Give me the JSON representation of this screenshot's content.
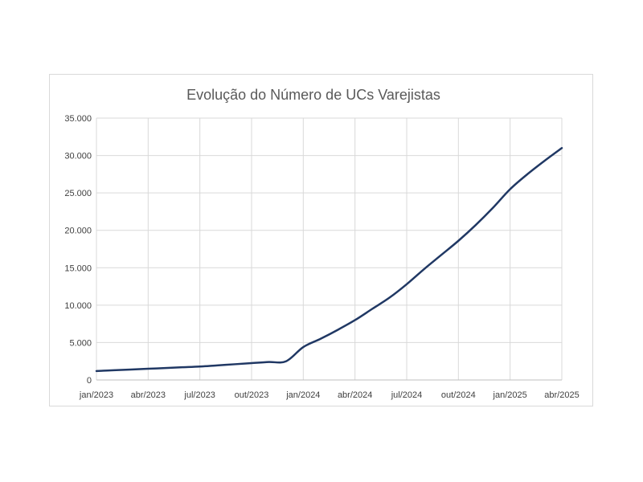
{
  "chart_data": {
    "type": "line",
    "title": "Evolução do Número de UCs Varejistas",
    "xlabel": "",
    "ylabel": "",
    "x_tick_labels": [
      "jan/2023",
      "abr/2023",
      "jul/2023",
      "out/2023",
      "jan/2024",
      "abr/2024",
      "jul/2024",
      "out/2024",
      "jan/2025",
      "abr/2025"
    ],
    "y_tick_labels": [
      "0",
      "5.000",
      "10.000",
      "15.000",
      "20.000",
      "25.000",
      "30.000",
      "35.000"
    ],
    "ylim": [
      0,
      35000
    ],
    "xlim": [
      "2023-01",
      "2025-04"
    ],
    "grid": true,
    "legend": "none",
    "line_color": "#203864",
    "series": [
      {
        "x": [
          "2023-01",
          "2023-02",
          "2023-03",
          "2023-04",
          "2023-05",
          "2023-06",
          "2023-07",
          "2023-08",
          "2023-09",
          "2023-10",
          "2023-11",
          "2023-12",
          "2024-01",
          "2024-02",
          "2024-03",
          "2024-04",
          "2024-05",
          "2024-06",
          "2024-07",
          "2024-08",
          "2024-09",
          "2024-10",
          "2024-11",
          "2024-12",
          "2025-01",
          "2025-02",
          "2025-03",
          "2025-04"
        ],
        "values": [
          1200,
          1300,
          1400,
          1500,
          1600,
          1700,
          1800,
          1950,
          2100,
          2250,
          2400,
          2500,
          4400,
          5500,
          6700,
          8000,
          9500,
          11000,
          12800,
          14800,
          16700,
          18600,
          20700,
          23000,
          25500,
          27500,
          29300,
          31000
        ]
      }
    ]
  }
}
